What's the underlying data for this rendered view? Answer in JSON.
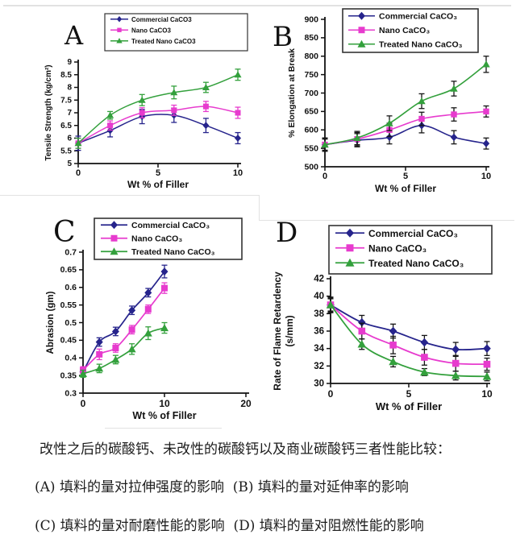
{
  "caption": {
    "line1": "改性之后的碳酸钙、未改性的碳酸钙以及商业碳酸钙三者性能比较：",
    "line2": "(A) 填料的量对拉伸强度的影响  (B) 填料的量对延伸率的影响",
    "line3": "(C) 填料的量对耐磨性能的影响  (D) 填料的量对阻燃性能的影响"
  },
  "colors": {
    "commercial": "#26248c",
    "nano": "#e73bce",
    "treated": "#33a03c",
    "axis": "#111111",
    "legend_border": "#333333"
  },
  "chart_data": [
    {
      "id": "A",
      "type": "line",
      "panel_label": "A",
      "xlabel": "Wt % of Filler",
      "ylabel": "Tensile Strength (kg/cm²)",
      "x": [
        0,
        2,
        4,
        6,
        8,
        10
      ],
      "xlim": [
        0,
        10
      ],
      "ylim": [
        5,
        9
      ],
      "xticks": {
        "values": [
          0,
          5,
          10
        ],
        "labels": [
          "0",
          "5",
          "10"
        ]
      },
      "yticks": {
        "values": [
          5,
          5.5,
          6,
          6.5,
          7,
          7.5,
          8,
          8.5,
          9
        ],
        "labels": [
          "5",
          "5.5",
          "6",
          "6.5",
          "7",
          "7.5",
          "8",
          "8.5",
          "9"
        ]
      },
      "legend_position": "top",
      "grid": false,
      "series": [
        {
          "name": "Commercial CaCO3",
          "marker": "diamond",
          "color_key": "commercial",
          "values": [
            5.8,
            6.3,
            6.85,
            6.9,
            6.5,
            6.0
          ],
          "error": [
            0.28,
            0.25,
            0.28,
            0.28,
            0.28,
            0.22
          ],
          "err_color": "series"
        },
        {
          "name": "Nano CaCO3",
          "marker": "square",
          "color_key": "nano",
          "values": [
            5.8,
            6.5,
            7.0,
            7.1,
            7.25,
            7.0
          ],
          "error": [
            0.2,
            0.18,
            0.2,
            0.2,
            0.2,
            0.22
          ],
          "err_color": "series"
        },
        {
          "name": "Treated Nano CaCO3",
          "marker": "triangle",
          "color_key": "treated",
          "values": [
            5.8,
            6.9,
            7.5,
            7.8,
            8.0,
            8.5
          ],
          "error": [
            0.2,
            0.15,
            0.22,
            0.25,
            0.2,
            0.22
          ],
          "err_color": "series"
        }
      ]
    },
    {
      "id": "B",
      "type": "line",
      "panel_label": "B",
      "xlabel": "Wt % of Filler",
      "ylabel": "% Elongation at Break",
      "x": [
        0,
        2,
        4,
        6,
        8,
        10
      ],
      "xlim": [
        0,
        10
      ],
      "ylim": [
        500,
        900
      ],
      "xticks": {
        "values": [
          0,
          5,
          10
        ],
        "labels": [
          "0",
          "5",
          "10"
        ]
      },
      "yticks": {
        "values": [
          500,
          550,
          600,
          650,
          700,
          750,
          800,
          850,
          900
        ],
        "labels": [
          "500",
          "550",
          "600",
          "650",
          "700",
          "750",
          "800",
          "850",
          "900"
        ]
      },
      "legend_position": "top",
      "grid": false,
      "series": [
        {
          "name": "Commercial CaCO₃",
          "marker": "diamond",
          "color_key": "commercial",
          "values": [
            560,
            572,
            580,
            612,
            580,
            563
          ],
          "error": [
            18,
            18,
            18,
            20,
            18,
            15
          ],
          "err_color": "black"
        },
        {
          "name": "Nano CaCO₃",
          "marker": "square",
          "color_key": "nano",
          "values": [
            560,
            575,
            600,
            630,
            642,
            650
          ],
          "error": [
            15,
            18,
            18,
            18,
            18,
            15
          ],
          "err_color": "black"
        },
        {
          "name": "Treated Nano CaCO₃",
          "marker": "triangle",
          "color_key": "treated",
          "values": [
            560,
            578,
            618,
            678,
            712,
            778
          ],
          "error": [
            18,
            18,
            20,
            20,
            20,
            22
          ],
          "err_color": "black"
        }
      ]
    },
    {
      "id": "C",
      "type": "line",
      "panel_label": "C",
      "xlabel": "Wt % of Filler",
      "ylabel": "Abrasion (gm)",
      "x": [
        0,
        2,
        4,
        6,
        8,
        10
      ],
      "xlim": [
        0,
        20
      ],
      "ylim": [
        0.3,
        0.7
      ],
      "xticks": {
        "values": [
          0,
          10,
          20
        ],
        "labels": [
          "0",
          "10",
          "20"
        ]
      },
      "yticks": {
        "values": [
          0.3,
          0.35,
          0.4,
          0.45,
          0.5,
          0.55,
          0.6,
          0.65,
          0.7
        ],
        "labels": [
          "0.3",
          "0.35",
          "0.4",
          "0.45",
          "0.5",
          "0.55",
          "0.6",
          "0.65",
          "0.7"
        ]
      },
      "legend_position": "top",
      "grid": false,
      "series": [
        {
          "name": "Commercial CaCO₃",
          "marker": "diamond",
          "color_key": "commercial",
          "values": [
            0.36,
            0.445,
            0.475,
            0.535,
            0.585,
            0.645
          ],
          "error": [
            0.01,
            0.012,
            0.012,
            0.012,
            0.012,
            0.018
          ],
          "err_color": "series"
        },
        {
          "name": "Nano CaCO₃",
          "marker": "square",
          "color_key": "nano",
          "values": [
            0.365,
            0.41,
            0.428,
            0.48,
            0.538,
            0.598
          ],
          "error": [
            0.01,
            0.015,
            0.012,
            0.012,
            0.012,
            0.015
          ],
          "err_color": "series"
        },
        {
          "name": "Treated Nano CaCO₃",
          "marker": "triangle",
          "color_key": "treated",
          "values": [
            0.355,
            0.37,
            0.395,
            0.425,
            0.47,
            0.485
          ],
          "error": [
            0.01,
            0.012,
            0.012,
            0.015,
            0.018,
            0.015
          ],
          "err_color": "series"
        }
      ]
    },
    {
      "id": "D",
      "type": "line",
      "panel_label": "D",
      "xlabel": "Wt % of Filler",
      "ylabel": "Rate of Flame Retardency (s/mm)",
      "x": [
        0,
        2,
        4,
        6,
        8,
        10
      ],
      "xlim": [
        0,
        10
      ],
      "ylim": [
        30,
        42
      ],
      "xticks": {
        "values": [
          0,
          5,
          10
        ],
        "labels": [
          "0",
          "5",
          "10"
        ]
      },
      "yticks": {
        "values": [
          30,
          32,
          34,
          36,
          38,
          40,
          42
        ],
        "labels": [
          "30",
          "32",
          "34",
          "36",
          "38",
          "40",
          "42"
        ]
      },
      "legend_position": "top",
      "grid": false,
      "series": [
        {
          "name": "Commercial CaCO₃",
          "marker": "diamond",
          "color_key": "commercial",
          "values": [
            39,
            37,
            36,
            34.7,
            33.9,
            34
          ],
          "error": [
            0.8,
            0.8,
            0.8,
            0.8,
            0.8,
            0.8
          ],
          "err_color": "black"
        },
        {
          "name": "Nano CaCO₃",
          "marker": "square",
          "color_key": "nano",
          "values": [
            39,
            36,
            34.4,
            33,
            32.3,
            32.2
          ],
          "error": [
            0.9,
            0.9,
            1.0,
            0.9,
            0.9,
            0.7
          ],
          "err_color": "black"
        },
        {
          "name": "Treated Nano CaCO₃",
          "marker": "triangle",
          "color_key": "treated",
          "values": [
            39,
            34.5,
            32.5,
            31.3,
            30.9,
            30.8
          ],
          "error": [
            0.7,
            0.6,
            0.6,
            0.4,
            0.5,
            0.5
          ],
          "err_color": "black"
        }
      ]
    }
  ]
}
